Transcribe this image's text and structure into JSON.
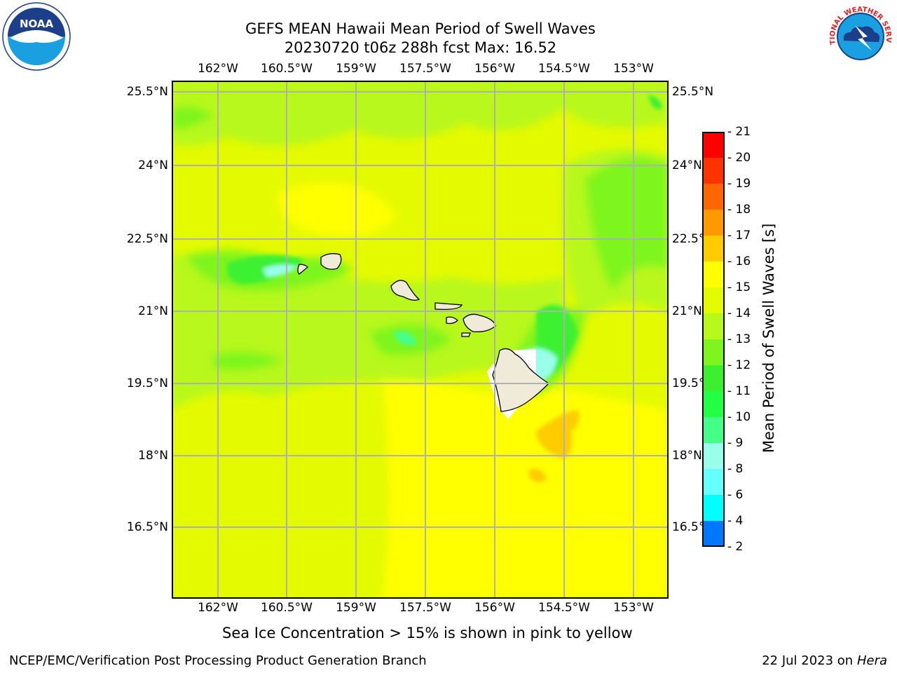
{
  "header": {
    "title_line1": "GEFS MEAN Hawaii Mean Period of Swell Waves",
    "title_line2": "20230720 t06z 288h fcst   Max: 16.52"
  },
  "logos": {
    "noaa": {
      "name": "noaa-logo",
      "text": "NOAA"
    },
    "nws": {
      "name": "nws-logo",
      "ring_text": "NATIONAL WEATHER SERVICE"
    }
  },
  "map": {
    "lon_labels": [
      "162°W",
      "160.5°W",
      "159°W",
      "157.5°W",
      "156°W",
      "154.5°W",
      "153°W"
    ],
    "lat_labels_left": [
      "25.5°N",
      "24°N",
      "22.5°N",
      "21°N",
      "19.5°N",
      "18°N",
      "16.5°N"
    ],
    "lat_labels_right": [
      "25.5°N",
      "24°N",
      "22.5°N",
      "21°N",
      "19.5°N",
      "18°N",
      "16.5°N"
    ],
    "colors": {
      "ocean_base": "#e4fa00",
      "yellow": "#ffff00",
      "green_light": "#b8f81a",
      "green": "#7ef51e",
      "green_mid": "#3cf030",
      "aqua": "#44ff88",
      "cyan_light": "#9affea",
      "orange": "#ffcc00",
      "land": "#efebd8",
      "grid": "#b0b0b0"
    }
  },
  "colorbar": {
    "label": "Mean Period of Swell Waves [s]",
    "ticks": [
      "21",
      "20",
      "19",
      "18",
      "17",
      "16",
      "15",
      "14",
      "13",
      "12",
      "11",
      "10",
      "9",
      "8",
      "6",
      "4",
      "2"
    ],
    "colors": [
      "#ff0000",
      "#ff3300",
      "#ff6600",
      "#ff9900",
      "#ffcc00",
      "#ffff00",
      "#e4fa00",
      "#b8f81a",
      "#7ef51e",
      "#3cf030",
      "#22ff44",
      "#44ff88",
      "#9affea",
      "#66ffff",
      "#00ffff",
      "#0077ff",
      "#0000ff"
    ]
  },
  "note": "Sea Ice Concentration > 15% is shown in pink to yellow",
  "footer": {
    "left": "NCEP/EMC/Verification Post Processing Product Generation Branch",
    "right_prefix": "22 Jul 2023 on ",
    "right_host": "Hera"
  }
}
